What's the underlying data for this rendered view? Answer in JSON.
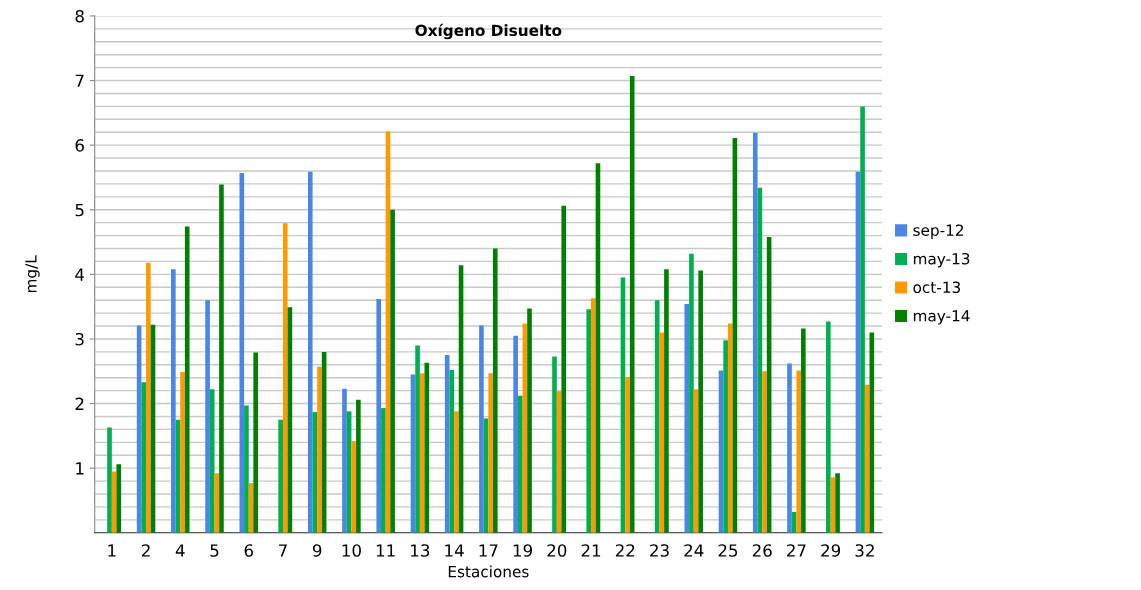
{
  "chart_data": {
    "type": "bar",
    "title": "Oxígeno Disuelto",
    "xlabel": "Estaciones",
    "ylabel": "mg/L",
    "categories": [
      "1",
      "2",
      "4",
      "5",
      "6",
      "7",
      "9",
      "10",
      "11",
      "13",
      "14",
      "17",
      "19",
      "20",
      "21",
      "22",
      "23",
      "24",
      "25",
      "26",
      "27",
      "29",
      "32"
    ],
    "series": [
      {
        "name": "sep-12",
        "color": "#4a86e8",
        "values": [
          null,
          3.21,
          4.08,
          3.6,
          5.57,
          null,
          5.59,
          2.23,
          3.62,
          2.45,
          2.75,
          3.21,
          3.05,
          null,
          null,
          null,
          null,
          3.54,
          2.51,
          6.19,
          2.62,
          null,
          5.59
        ]
      },
      {
        "name": "may-13",
        "color": "#00b050",
        "values": [
          1.63,
          2.33,
          1.75,
          2.22,
          1.97,
          1.75,
          1.87,
          1.88,
          1.93,
          2.9,
          2.52,
          1.77,
          2.12,
          2.73,
          3.46,
          3.95,
          3.6,
          4.32,
          2.98,
          5.34,
          0.32,
          3.27,
          6.6
        ]
      },
      {
        "name": "oct-13",
        "color": "#ff9900",
        "values": [
          0.95,
          4.18,
          2.49,
          0.92,
          0.77,
          4.79,
          2.57,
          1.42,
          6.21,
          2.47,
          1.88,
          2.47,
          3.24,
          2.19,
          3.63,
          2.41,
          3.1,
          2.22,
          3.24,
          2.5,
          2.51,
          0.86,
          2.29
        ]
      },
      {
        "name": "may-14",
        "color": "#008000",
        "values": [
          1.06,
          3.22,
          4.74,
          5.39,
          2.79,
          3.49,
          2.8,
          2.06,
          5.0,
          2.63,
          4.14,
          4.4,
          3.47,
          5.06,
          5.72,
          7.07,
          4.08,
          4.06,
          6.11,
          4.58,
          3.16,
          0.92,
          3.1
        ]
      }
    ],
    "ylim": [
      0,
      8
    ],
    "yticks": [
      {
        "value": 0,
        "label": null
      },
      {
        "value": 0.2,
        "label": null
      },
      {
        "value": 0.4,
        "label": null
      },
      {
        "value": 0.6,
        "label": null
      },
      {
        "value": 0.8,
        "label": null
      },
      1,
      {
        "value": 1.2,
        "label": null
      },
      {
        "value": 1.4,
        "label": null
      },
      {
        "value": 1.6,
        "label": null
      },
      {
        "value": 1.8,
        "label": null
      },
      2,
      {
        "value": 2.2,
        "label": null
      },
      {
        "value": 2.4,
        "label": null
      },
      {
        "value": 2.6,
        "label": null
      },
      {
        "value": 2.8,
        "label": null
      },
      3,
      {
        "value": 3.2,
        "label": null
      },
      {
        "value": 3.4,
        "label": null
      },
      {
        "value": 3.6,
        "label": null
      },
      {
        "value": 3.8,
        "label": null
      },
      4,
      {
        "value": 4.2,
        "label": null
      },
      {
        "value": 4.4,
        "label": null
      },
      {
        "value": 4.6,
        "label": null
      },
      {
        "value": 4.8,
        "label": null
      },
      5,
      {
        "value": 5.2,
        "label": null
      },
      {
        "value": 5.4,
        "label": null
      },
      {
        "value": 5.6,
        "label": null
      },
      {
        "value": 5.8,
        "label": null
      },
      6,
      {
        "value": 6.2,
        "label": null
      },
      {
        "value": 6.4,
        "label": null
      },
      {
        "value": 6.6,
        "label": null
      },
      {
        "value": 6.8,
        "label": null
      },
      7,
      {
        "value": 7.2,
        "label": null
      },
      {
        "value": 7.4,
        "label": null
      },
      {
        "value": 7.6,
        "label": null
      },
      {
        "value": 7.8,
        "label": null
      },
      8
    ],
    "grid": "y",
    "legend": "right"
  }
}
